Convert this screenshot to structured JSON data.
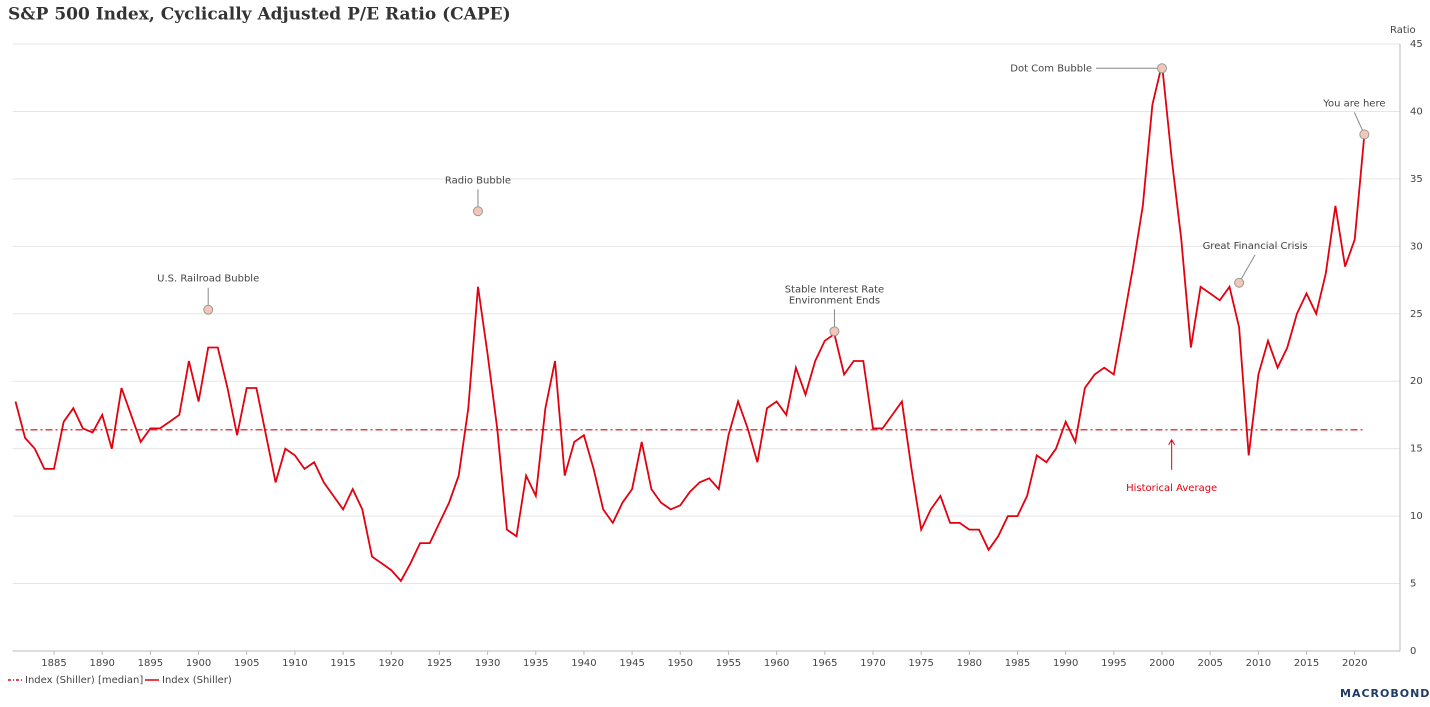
{
  "chart_data": {
    "type": "line",
    "title": "S&P 500 Index, Cyclically Adjusted P/E Ratio (CAPE)",
    "y_axis_label": "Ratio",
    "x": [
      1881,
      1882,
      1883,
      1884,
      1885,
      1886,
      1887,
      1888,
      1889,
      1890,
      1891,
      1892,
      1893,
      1894,
      1895,
      1896,
      1897,
      1898,
      1899,
      1900,
      1901,
      1902,
      1903,
      1904,
      1905,
      1906,
      1907,
      1908,
      1909,
      1910,
      1911,
      1912,
      1913,
      1914,
      1915,
      1916,
      1917,
      1918,
      1919,
      1920,
      1921,
      1922,
      1923,
      1924,
      1925,
      1926,
      1927,
      1928,
      1929,
      1930,
      1931,
      1932,
      1933,
      1934,
      1935,
      1936,
      1937,
      1938,
      1939,
      1940,
      1941,
      1942,
      1943,
      1944,
      1945,
      1946,
      1947,
      1948,
      1949,
      1950,
      1951,
      1952,
      1953,
      1954,
      1955,
      1956,
      1957,
      1958,
      1959,
      1960,
      1961,
      1962,
      1963,
      1964,
      1965,
      1966,
      1967,
      1968,
      1969,
      1970,
      1971,
      1972,
      1973,
      1974,
      1975,
      1976,
      1977,
      1978,
      1979,
      1980,
      1981,
      1982,
      1983,
      1984,
      1985,
      1986,
      1987,
      1988,
      1989,
      1990,
      1991,
      1992,
      1993,
      1994,
      1995,
      1996,
      1997,
      1998,
      1999,
      2000,
      2001,
      2002,
      2003,
      2004,
      2005,
      2006,
      2007,
      2008,
      2009,
      2010,
      2011,
      2012,
      2013,
      2014,
      2015,
      2016,
      2017,
      2018,
      2019,
      2020,
      2021
    ],
    "series": [
      {
        "name": "Index (Shiller) [median]",
        "color": "#e3000f",
        "style": "dashdot",
        "values": [
          16.4,
          16.4,
          16.4,
          16.4,
          16.4,
          16.4,
          16.4,
          16.4,
          16.4,
          16.4,
          16.4,
          16.4,
          16.4,
          16.4,
          16.4,
          16.4,
          16.4,
          16.4,
          16.4,
          16.4,
          16.4,
          16.4,
          16.4,
          16.4,
          16.4,
          16.4,
          16.4,
          16.4,
          16.4,
          16.4,
          16.4,
          16.4,
          16.4,
          16.4,
          16.4,
          16.4,
          16.4,
          16.4,
          16.4,
          16.4,
          16.4,
          16.4,
          16.4,
          16.4,
          16.4,
          16.4,
          16.4,
          16.4,
          16.4,
          16.4,
          16.4,
          16.4,
          16.4,
          16.4,
          16.4,
          16.4,
          16.4,
          16.4,
          16.4,
          16.4,
          16.4,
          16.4,
          16.4,
          16.4,
          16.4,
          16.4,
          16.4,
          16.4,
          16.4,
          16.4,
          16.4,
          16.4,
          16.4,
          16.4,
          16.4,
          16.4,
          16.4,
          16.4,
          16.4,
          16.4,
          16.4,
          16.4,
          16.4,
          16.4,
          16.4,
          16.4,
          16.4,
          16.4,
          16.4,
          16.4,
          16.4,
          16.4,
          16.4,
          16.4,
          16.4,
          16.4,
          16.4,
          16.4,
          16.4,
          16.4,
          16.4,
          16.4,
          16.4,
          16.4,
          16.4,
          16.4,
          16.4,
          16.4,
          16.4,
          16.4,
          16.4,
          16.4,
          16.4,
          16.4,
          16.4,
          16.4,
          16.4,
          16.4,
          16.4,
          16.4,
          16.4,
          16.4,
          16.4,
          16.4,
          16.4,
          16.4,
          16.4,
          16.4,
          16.4,
          16.4,
          16.4,
          16.4,
          16.4,
          16.4,
          16.4,
          16.4,
          16.4,
          16.4,
          16.4,
          16.4,
          16.4
        ]
      },
      {
        "name": "Index (Shiller)",
        "color": "#e3000f",
        "style": "solid",
        "values": [
          18.5,
          15.8,
          15.0,
          13.5,
          13.5,
          17.0,
          18.0,
          16.5,
          16.2,
          17.5,
          15.0,
          19.5,
          17.5,
          15.5,
          16.5,
          16.5,
          17.0,
          17.5,
          21.5,
          18.5,
          22.5,
          22.5,
          19.5,
          16.0,
          19.5,
          19.5,
          16.0,
          12.5,
          15.0,
          14.5,
          13.5,
          14.0,
          12.5,
          11.5,
          10.5,
          12.0,
          10.5,
          7.0,
          6.5,
          6.0,
          5.2,
          6.5,
          8.0,
          8.0,
          9.5,
          11.0,
          13.0,
          18.0,
          27.0,
          22.0,
          16.5,
          9.0,
          8.5,
          13.0,
          11.5,
          18.0,
          21.5,
          13.0,
          15.5,
          16.0,
          13.5,
          10.5,
          9.5,
          11.0,
          12.0,
          15.5,
          12.0,
          11.0,
          10.5,
          10.8,
          11.8,
          12.5,
          12.8,
          12.0,
          16.0,
          18.5,
          16.5,
          14.0,
          18.0,
          18.5,
          17.5,
          21.0,
          19.0,
          21.5,
          23.0,
          23.5,
          20.5,
          21.5,
          21.5,
          16.5,
          16.5,
          17.5,
          18.5,
          13.5,
          9.0,
          10.5,
          11.5,
          9.5,
          9.5,
          9.0,
          9.0,
          7.5,
          8.5,
          10.0,
          10.0,
          11.5,
          14.5,
          14.0,
          15.0,
          17.0,
          15.5,
          19.5,
          20.5,
          21.0,
          20.5,
          24.5,
          28.5,
          33.0,
          40.5,
          43.5,
          36.5,
          30.5,
          22.5,
          27.0,
          26.5,
          26.0,
          27.0,
          24.0,
          14.5,
          20.5,
          23.0,
          21.0,
          22.5,
          25.0,
          26.5,
          25.0,
          28.0,
          33.0,
          28.5,
          30.5,
          38.3
        ]
      }
    ],
    "annotations": [
      {
        "text": [
          "U.S. Railroad Bubble"
        ],
        "x": 1901,
        "y": 25.3
      },
      {
        "text": [
          "Radio Bubble"
        ],
        "x": 1929,
        "y": 32.6
      },
      {
        "text": [
          "Stable Interest Rate",
          "Environment Ends"
        ],
        "x": 1966,
        "y": 23.7
      },
      {
        "text": [
          "Dot Com Bubble"
        ],
        "x": 2000,
        "y": 43.2
      },
      {
        "text": [
          "Great Financial Crisis"
        ],
        "x": 2008,
        "y": 27.3
      },
      {
        "text": [
          "You are here"
        ],
        "x": 2021,
        "y": 38.3
      }
    ],
    "median_label": {
      "text": "Historical Average",
      "x": 2001
    },
    "source": "MACROBOND",
    "xlim": [
      1880.7,
      2024.7
    ],
    "xticks": [
      1885,
      1890,
      1895,
      1900,
      1905,
      1910,
      1915,
      1920,
      1925,
      1930,
      1935,
      1940,
      1945,
      1950,
      1955,
      1960,
      1965,
      1970,
      1975,
      1980,
      1985,
      1990,
      1995,
      2000,
      2005,
      2010,
      2015,
      2020
    ],
    "ylim": [
      0,
      45
    ],
    "yticks": [
      0,
      5,
      10,
      15,
      20,
      25,
      30,
      35,
      40,
      45
    ],
    "grid": true
  }
}
